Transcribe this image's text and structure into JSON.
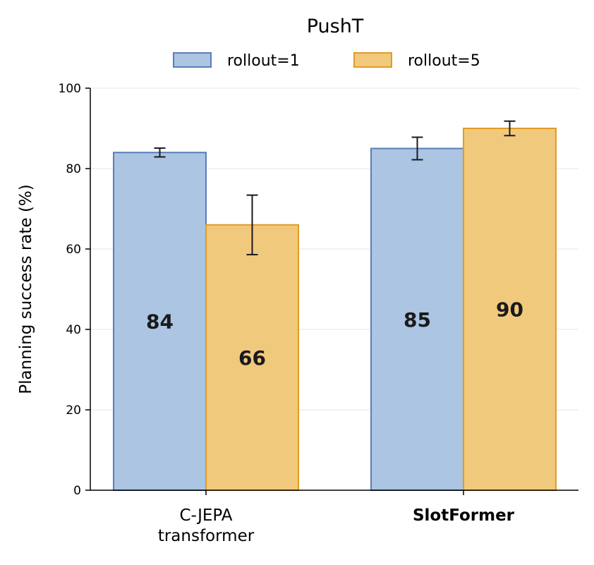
{
  "chart_data": {
    "type": "bar",
    "title": "PushT",
    "ylabel": "Planning success rate (%)",
    "xlabel": "",
    "ylim": [
      0,
      100
    ],
    "yticks": [
      0,
      20,
      40,
      60,
      80,
      100
    ],
    "grid": "horizontal",
    "legend_position": "top-center",
    "categories": [
      {
        "lines": [
          "C-JEPA",
          "transformer"
        ],
        "bold": false
      },
      {
        "lines": [
          "SlotFormer"
        ],
        "bold": true
      }
    ],
    "series": [
      {
        "name": "rollout=1",
        "values": [
          84,
          85
        ],
        "errors": [
          1.1,
          2.8
        ],
        "labels": [
          "84",
          "85"
        ],
        "fill": "#abc5e2",
        "stroke": "#5b7db8"
      },
      {
        "name": "rollout=5",
        "values": [
          66,
          90
        ],
        "errors": [
          7.4,
          1.8
        ],
        "labels": [
          "66",
          "90"
        ],
        "fill": "#f1c97c",
        "stroke": "#e09b26"
      }
    ]
  }
}
